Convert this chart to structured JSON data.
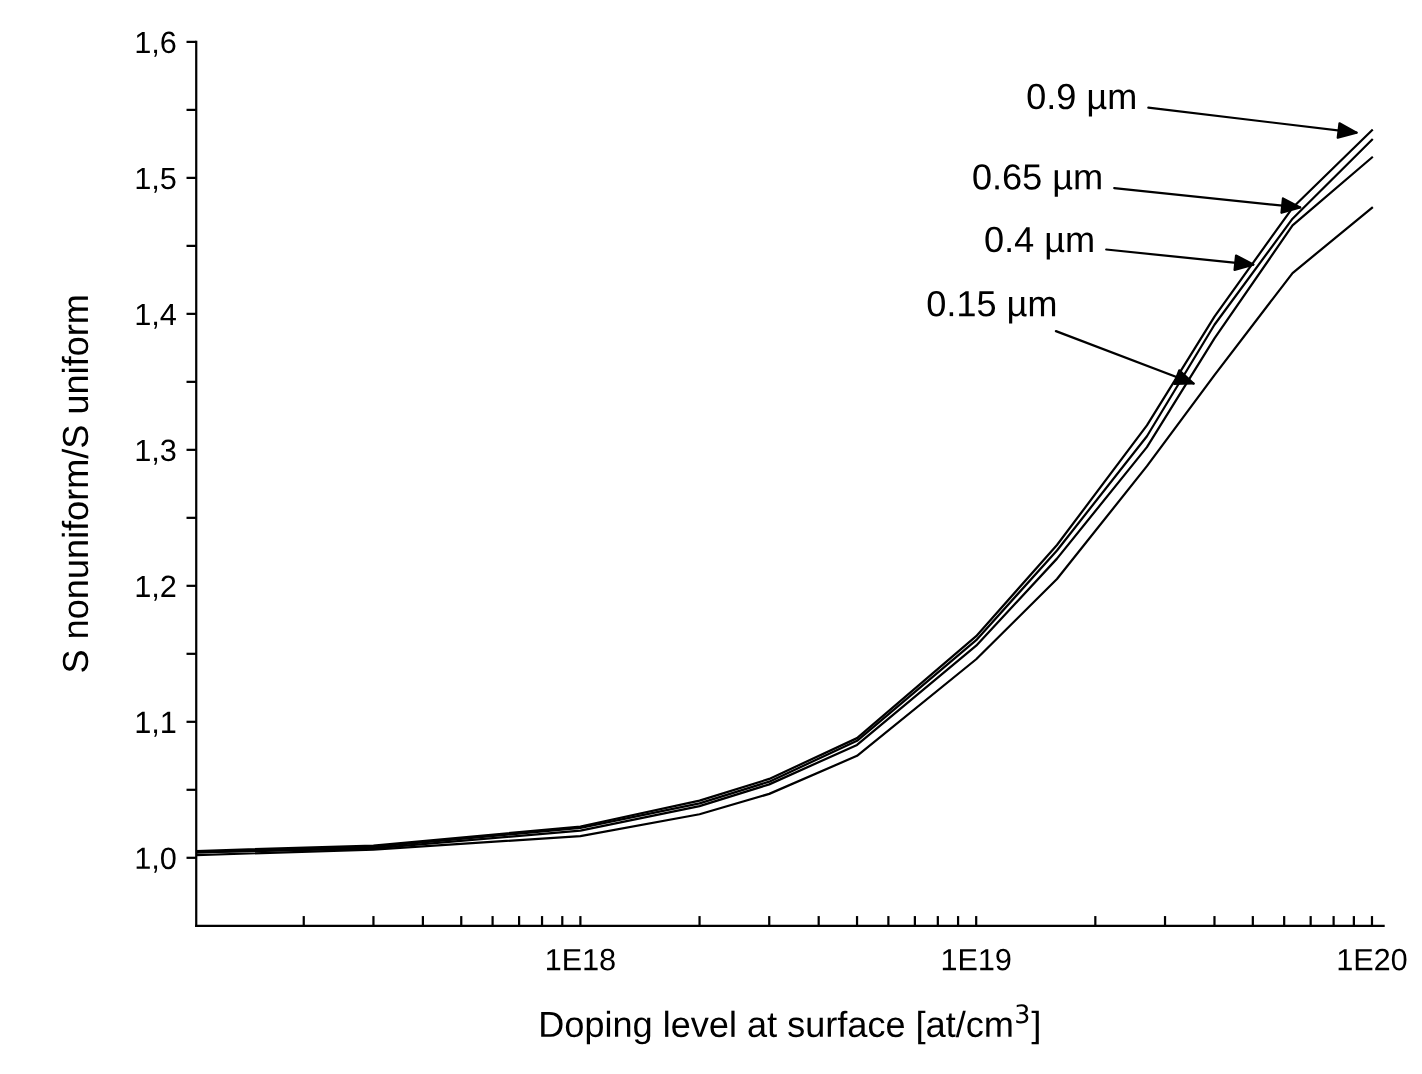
{
  "chart_data": {
    "type": "line",
    "xlabel": "Doping level at surface [at/cm$^{3}$]",
    "ylabel": "S nonuniform/S uniform",
    "log": "x",
    "grid": false,
    "legend": false,
    "marker": "none",
    "line_style": "solid",
    "xlim": [
      1.07e+17,
      1.07e+20
    ],
    "xticks": [
      {
        "value": 2e+17,
        "label": null
      },
      {
        "value": 3e+17,
        "label": null
      },
      {
        "value": 4e+17,
        "label": null
      },
      {
        "value": 5e+17,
        "label": null
      },
      {
        "value": 6e+17,
        "label": null
      },
      {
        "value": 7e+17,
        "label": null
      },
      {
        "value": 8e+17,
        "label": null
      },
      {
        "value": 9e+17,
        "label": null
      },
      {
        "value": 1e+18,
        "label": "1E18"
      },
      {
        "value": 2e+18,
        "label": null
      },
      {
        "value": 3e+18,
        "label": null
      },
      {
        "value": 4e+18,
        "label": null
      },
      {
        "value": 5e+18,
        "label": null
      },
      {
        "value": 6e+18,
        "label": null
      },
      {
        "value": 7e+18,
        "label": null
      },
      {
        "value": 8e+18,
        "label": null
      },
      {
        "value": 9e+18,
        "label": null
      },
      {
        "value": 1e+19,
        "label": "1E19"
      },
      {
        "value": 2e+19,
        "label": null
      },
      {
        "value": 3e+19,
        "label": null
      },
      {
        "value": 4e+19,
        "label": null
      },
      {
        "value": 5e+19,
        "label": null
      },
      {
        "value": 6e+19,
        "label": null
      },
      {
        "value": 7e+19,
        "label": null
      },
      {
        "value": 8e+19,
        "label": null
      },
      {
        "value": 9e+19,
        "label": null
      },
      {
        "value": 1e+20,
        "label": "1E20"
      }
    ],
    "ylim": [
      0.95,
      1.6
    ],
    "yticks": [
      {
        "value": 1.0,
        "label": "1,0"
      },
      {
        "value": 1.05,
        "label": null
      },
      {
        "value": 1.1,
        "label": "1,1"
      },
      {
        "value": 1.15,
        "label": null
      },
      {
        "value": 1.2,
        "label": "1,2"
      },
      {
        "value": 1.25,
        "label": null
      },
      {
        "value": 1.3,
        "label": "1,3"
      },
      {
        "value": 1.35,
        "label": null
      },
      {
        "value": 1.4,
        "label": "1,4"
      },
      {
        "value": 1.45,
        "label": null
      },
      {
        "value": 1.5,
        "label": "1,5"
      },
      {
        "value": 1.55,
        "label": null
      },
      {
        "value": 1.6,
        "label": "1,6"
      }
    ],
    "x": [
      1.07e+17,
      3e+17,
      1e+18,
      2e+18,
      3e+18,
      5e+18,
      1e+19,
      1.6e+19,
      2.7e+19,
      4e+19,
      6.3e+19,
      1e+20
    ],
    "series": [
      {
        "color": "#000000",
        "values": [
          1.005,
          1.009,
          1.023,
          1.042,
          1.058,
          1.088,
          1.163,
          1.23,
          1.318,
          1.398,
          1.478,
          1.535
        ]
      },
      {
        "color": "#000000",
        "values": [
          1.004,
          1.008,
          1.022,
          1.04,
          1.056,
          1.086,
          1.16,
          1.226,
          1.31,
          1.392,
          1.47,
          1.528
        ]
      },
      {
        "color": "#000000",
        "values": [
          1.004,
          1.007,
          1.02,
          1.038,
          1.054,
          1.083,
          1.156,
          1.22,
          1.302,
          1.382,
          1.465,
          1.515
        ]
      },
      {
        "color": "#000000",
        "values": [
          1.002,
          1.006,
          1.016,
          1.032,
          1.047,
          1.075,
          1.146,
          1.205,
          1.288,
          1.355,
          1.43,
          1.478
        ]
      }
    ],
    "annotations": [
      {
        "text": "0.9 µm",
        "x": 9.3e+19,
        "y": 1.533
      },
      {
        "text": "0.65 µm",
        "x": 6.7e+19,
        "y": 1.478
      },
      {
        "text": "0.4 µm",
        "x": 5.1e+19,
        "y": 1.436
      },
      {
        "text": "0.15 µm",
        "x": 3.6e+19,
        "y": 1.348
      }
    ]
  }
}
